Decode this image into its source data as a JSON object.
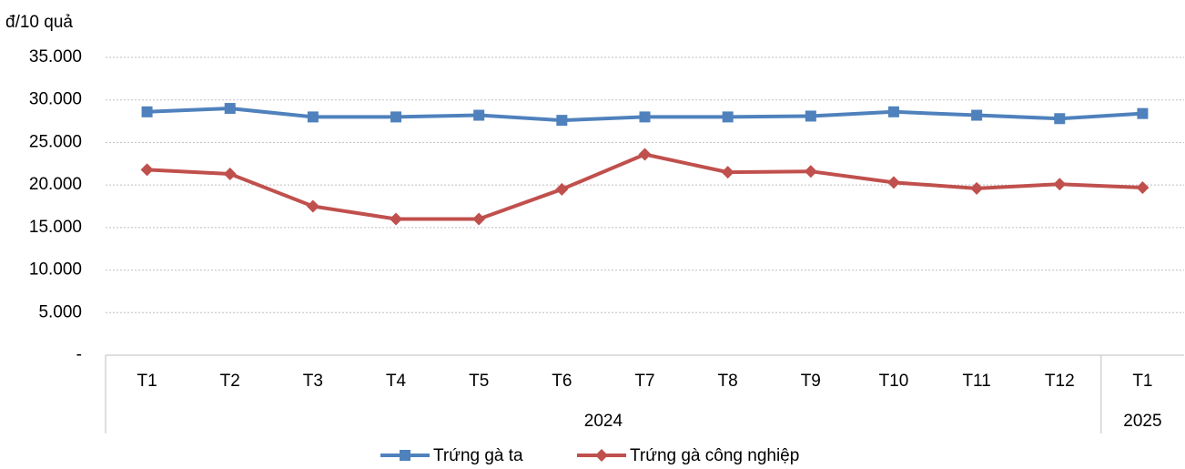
{
  "chart_data": {
    "type": "line",
    "y_axis_label": "đ/10 quả",
    "categories": [
      "T1",
      "T2",
      "T3",
      "T4",
      "T5",
      "T6",
      "T7",
      "T8",
      "T9",
      "T10",
      "T11",
      "T12",
      "T1"
    ],
    "category_groups": [
      {
        "label": "2024",
        "count": 12
      },
      {
        "label": "2025",
        "count": 1
      }
    ],
    "series": [
      {
        "name": "Trứng gà ta",
        "color": "#4f81bd",
        "marker": "square",
        "values": [
          28600,
          29000,
          28000,
          28000,
          28200,
          27600,
          28000,
          28000,
          28100,
          28600,
          28200,
          27800,
          28400
        ]
      },
      {
        "name": "Trứng gà công nghiệp",
        "color": "#c0504d",
        "marker": "diamond",
        "values": [
          21800,
          21300,
          17500,
          16000,
          16000,
          19500,
          23600,
          21500,
          21600,
          20300,
          19600,
          20100,
          19700
        ]
      }
    ],
    "ylim": [
      0,
      35000
    ],
    "yticks": [
      {
        "value": 0,
        "label": "-"
      },
      {
        "value": 5000,
        "label": "5.000"
      },
      {
        "value": 10000,
        "label": "10.000"
      },
      {
        "value": 15000,
        "label": "15.000"
      },
      {
        "value": 20000,
        "label": "20.000"
      },
      {
        "value": 25000,
        "label": "25.000"
      },
      {
        "value": 30000,
        "label": "30.000"
      },
      {
        "value": 35000,
        "label": "35.000"
      }
    ],
    "grid": true,
    "legend": "bottom"
  }
}
